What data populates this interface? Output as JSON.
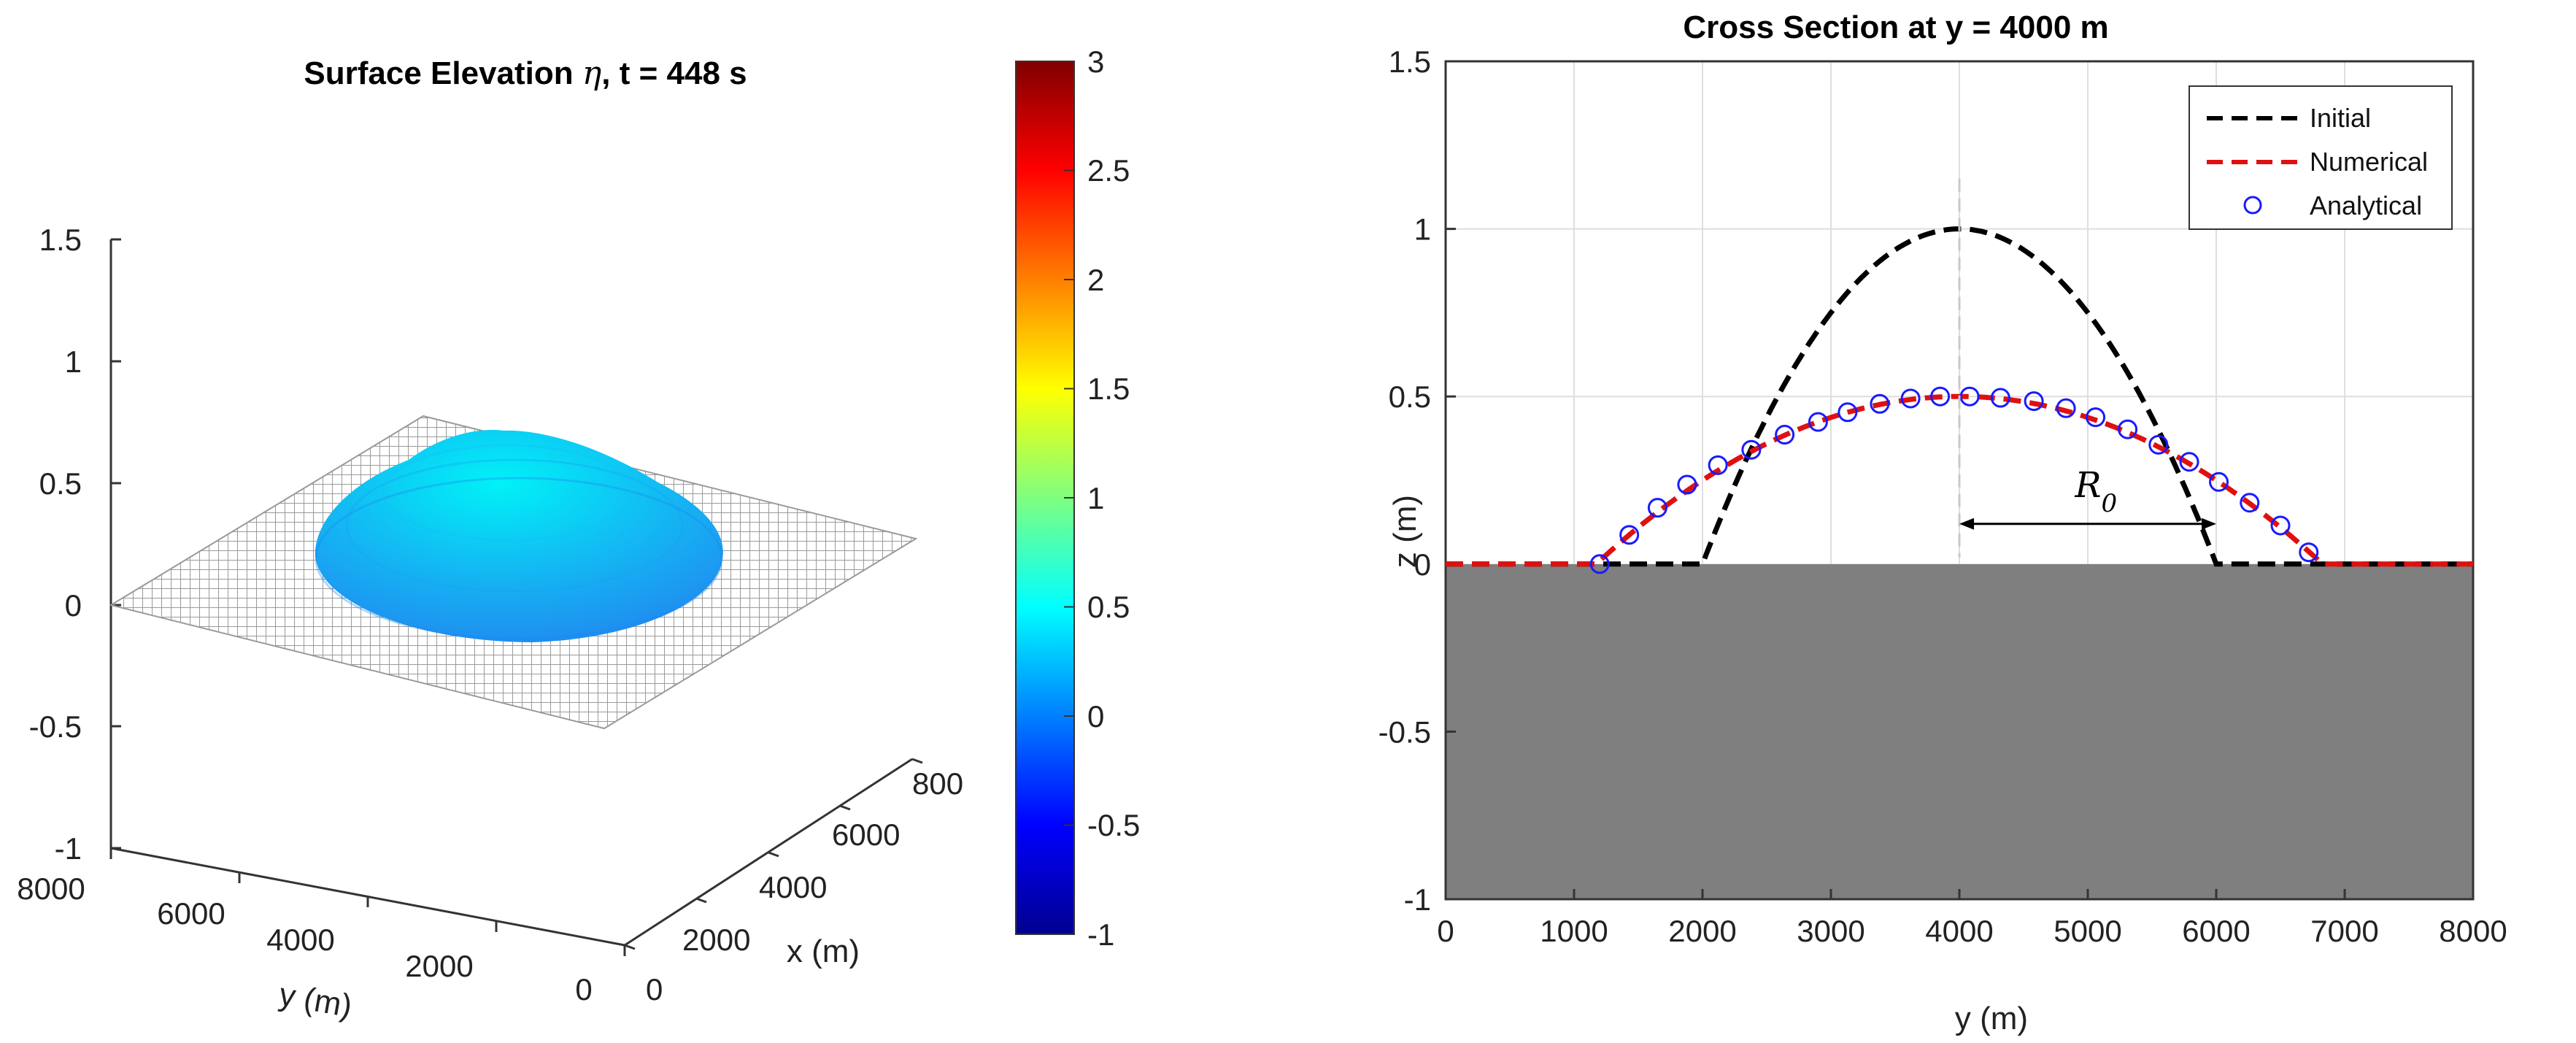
{
  "chart_data": [
    {
      "type": "surface3d",
      "title_prefix": "Surface Elevation ",
      "title_symbol": "η",
      "title_suffix": ", t = 448 s",
      "zlim": [
        -1,
        1.5
      ],
      "zticks": [
        "1.5",
        "1",
        "0.5",
        "0",
        "-0.5",
        "-1"
      ],
      "yticks": [
        "8000",
        "6000",
        "4000",
        "2000",
        "0"
      ],
      "xticks": [
        "0",
        "2000",
        "4000",
        "6000",
        "800"
      ],
      "xlabel": "x (m)",
      "ylabel": "y (m)",
      "surface": {
        "center_x": 4000,
        "center_y": 4000,
        "peak_eta": 0.5,
        "radius": 2800,
        "color": "#00d5f0",
        "flat_mesh_color": "#b4b4b4"
      },
      "colorbar": {
        "range": [
          -1,
          3
        ],
        "ticks": [
          "3",
          "2.5",
          "2",
          "1.5",
          "1",
          "0.5",
          "0",
          "-0.5",
          "-1"
        ],
        "colormap": "jet"
      }
    },
    {
      "type": "line",
      "title": "Cross Section at y = 4000 m",
      "xlabel": "y (m)",
      "ylabel": "z (m)",
      "xlim": [
        0,
        8000
      ],
      "ylim": [
        -1,
        1.5
      ],
      "xticks": [
        "0",
        "1000",
        "2000",
        "3000",
        "4000",
        "5000",
        "6000",
        "7000",
        "8000"
      ],
      "yticks": [
        "1.5",
        "1",
        "0.5",
        "0",
        "-0.5",
        "-1"
      ],
      "grid": true,
      "legend_position": "top-right",
      "bathymetry_fill": "#7f7f7f",
      "series": [
        {
          "name": "Initial",
          "style": "dashed",
          "color": "#000000",
          "center": 4000,
          "peak": 1.0,
          "half_width": 2000
        },
        {
          "name": "Numerical",
          "style": "dashed",
          "color": "#e01010",
          "center": 4000,
          "peak": 0.5,
          "half_width": 2828
        },
        {
          "name": "Analytical",
          "style": "markers",
          "color": "#1a1aff",
          "x": [
            1200,
            1430,
            1650,
            1880,
            2120,
            2380,
            2640,
            2900,
            3130,
            3380,
            3620,
            3850,
            4080,
            4320,
            4580,
            4830,
            5060,
            5310,
            5550,
            5790,
            6020,
            6260,
            6500,
            6720
          ],
          "y": [
            0.0,
            0.087,
            0.168,
            0.237,
            0.295,
            0.341,
            0.386,
            0.424,
            0.453,
            0.478,
            0.494,
            0.5,
            0.5,
            0.496,
            0.486,
            0.465,
            0.438,
            0.402,
            0.356,
            0.305,
            0.245,
            0.183,
            0.115,
            0.035
          ]
        }
      ],
      "annotation": {
        "label": "R",
        "subscript": "0",
        "from_x": 4000,
        "to_x": 6000,
        "y": 0.12
      }
    }
  ]
}
